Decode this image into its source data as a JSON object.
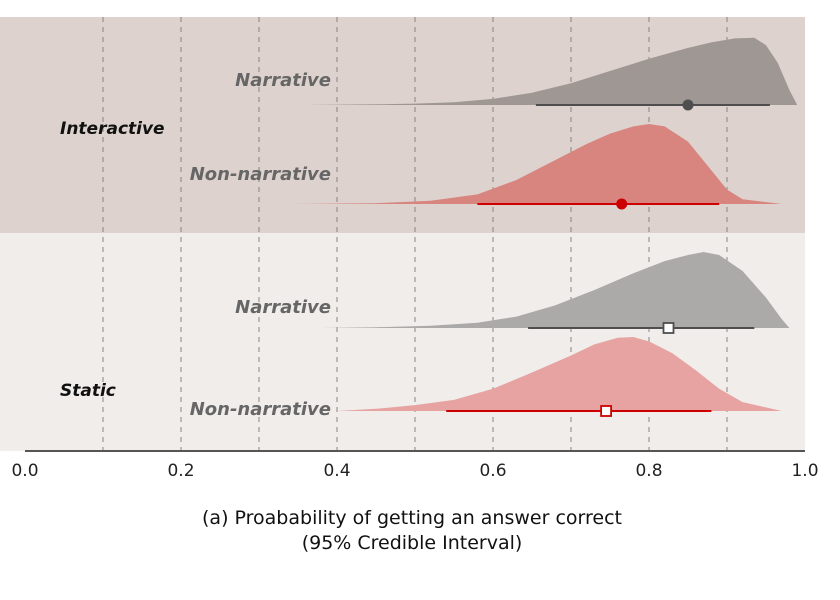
{
  "chart_data": {
    "type": "density_interval",
    "xlabel_line1": "(a) Proabability of getting an answer correct",
    "xlabel_line2": "(95% Credible Interval)",
    "xlim": [
      0.0,
      1.0
    ],
    "xticks": [
      "0.0",
      "0.2",
      "0.4",
      "0.6",
      "0.8",
      "1.0"
    ],
    "grid": "dashed vertical every 0.1",
    "groups": [
      {
        "label": "Interactive",
        "background": "#ddd2cd",
        "rows": [
          {
            "label": "Narrative",
            "color": "#9e9794",
            "point_color": "#4e4e4e",
            "marker": "circle",
            "point": 0.85,
            "interval": [
              0.655,
              0.955
            ],
            "density_range": [
              0.36,
              0.99
            ],
            "density": [
              [
                0.36,
                0.0
              ],
              [
                0.45,
                0.01
              ],
              [
                0.5,
                0.02
              ],
              [
                0.55,
                0.04
              ],
              [
                0.6,
                0.09
              ],
              [
                0.65,
                0.18
              ],
              [
                0.7,
                0.32
              ],
              [
                0.75,
                0.5
              ],
              [
                0.8,
                0.68
              ],
              [
                0.85,
                0.84
              ],
              [
                0.88,
                0.92
              ],
              [
                0.91,
                0.98
              ],
              [
                0.935,
                0.99
              ],
              [
                0.95,
                0.88
              ],
              [
                0.965,
                0.62
              ],
              [
                0.98,
                0.22
              ],
              [
                0.99,
                0.0
              ]
            ]
          },
          {
            "label": "Non-narrative",
            "color": "#d8847f",
            "point_color": "#cc0000",
            "marker": "circle",
            "point": 0.765,
            "interval": [
              0.58,
              0.89
            ],
            "density_range": [
              0.34,
              0.97
            ],
            "density": [
              [
                0.34,
                0.0
              ],
              [
                0.45,
                0.01
              ],
              [
                0.52,
                0.04
              ],
              [
                0.58,
                0.12
              ],
              [
                0.63,
                0.3
              ],
              [
                0.68,
                0.55
              ],
              [
                0.72,
                0.75
              ],
              [
                0.75,
                0.88
              ],
              [
                0.78,
                0.97
              ],
              [
                0.8,
                1.0
              ],
              [
                0.82,
                0.97
              ],
              [
                0.85,
                0.78
              ],
              [
                0.88,
                0.42
              ],
              [
                0.9,
                0.18
              ],
              [
                0.92,
                0.06
              ],
              [
                0.97,
                0.0
              ]
            ]
          }
        ]
      },
      {
        "label": "Static",
        "background": "#f1edea",
        "rows": [
          {
            "label": "Narrative",
            "color": "#acaaa9",
            "point_color": "#4e4e4e",
            "marker": "square",
            "point": 0.825,
            "interval": [
              0.645,
              0.935
            ],
            "density_range": [
              0.38,
              0.98
            ],
            "density": [
              [
                0.38,
                0.0
              ],
              [
                0.45,
                0.01
              ],
              [
                0.52,
                0.03
              ],
              [
                0.58,
                0.07
              ],
              [
                0.63,
                0.15
              ],
              [
                0.68,
                0.3
              ],
              [
                0.73,
                0.5
              ],
              [
                0.78,
                0.72
              ],
              [
                0.82,
                0.88
              ],
              [
                0.85,
                0.96
              ],
              [
                0.87,
                1.0
              ],
              [
                0.89,
                0.96
              ],
              [
                0.92,
                0.75
              ],
              [
                0.95,
                0.4
              ],
              [
                0.97,
                0.12
              ],
              [
                0.98,
                0.0
              ]
            ]
          },
          {
            "label": "Non-narrative",
            "color": "#e6a3a1",
            "point_color": "#cc0000",
            "marker": "square",
            "point": 0.745,
            "interval": [
              0.54,
              0.88
            ],
            "density_range": [
              0.4,
              0.97
            ],
            "density": [
              [
                0.4,
                0.0
              ],
              [
                0.45,
                0.03
              ],
              [
                0.5,
                0.08
              ],
              [
                0.55,
                0.15
              ],
              [
                0.6,
                0.3
              ],
              [
                0.65,
                0.52
              ],
              [
                0.7,
                0.75
              ],
              [
                0.73,
                0.9
              ],
              [
                0.76,
                0.99
              ],
              [
                0.78,
                1.0
              ],
              [
                0.8,
                0.94
              ],
              [
                0.83,
                0.78
              ],
              [
                0.86,
                0.55
              ],
              [
                0.89,
                0.3
              ],
              [
                0.92,
                0.12
              ],
              [
                0.97,
                0.0
              ]
            ]
          }
        ]
      }
    ]
  }
}
